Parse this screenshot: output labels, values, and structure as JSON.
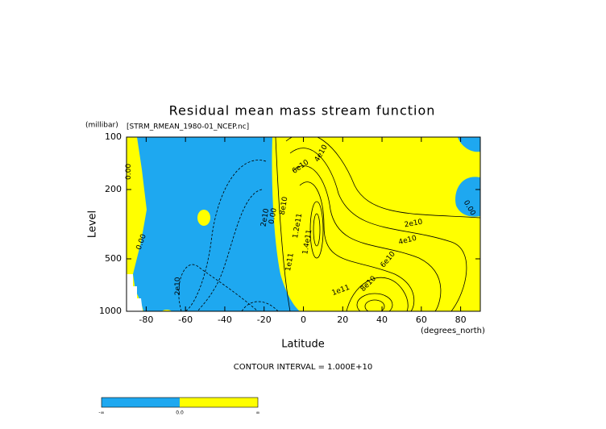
{
  "chart_data": {
    "type": "contour",
    "title": "Residual mean mass stream function",
    "subtitle": "[STRM_RMEAN_1980-01_NCEP.nc]",
    "y_unit": "(millibar)",
    "x_unit": "(degrees_north)",
    "y_label": "Level",
    "x_label": "Latitude",
    "note": "CONTOUR INTERVAL = 1.000E+10",
    "xlim": [
      -90,
      90
    ],
    "xticks": [
      -80,
      -60,
      -40,
      -20,
      0,
      20,
      40,
      60,
      80
    ],
    "ylim": [
      100,
      1000
    ],
    "yticks": [
      100,
      200,
      500,
      1000
    ],
    "y_log": true,
    "negative_color": "#1ea8f0",
    "positive_color": "#ffff00",
    "contour_labels": [
      {
        "text": "0.00",
        "lat": -89,
        "level": 158,
        "rotation": -90
      },
      {
        "text": "0.00",
        "lat": -82.5,
        "level": 400,
        "rotation": -70
      },
      {
        "text": "2e10",
        "lat": -64,
        "level": 718,
        "rotation": -90
      },
      {
        "text": "2e10",
        "lat": -19.5,
        "level": 290,
        "rotation": -80
      },
      {
        "text": "0.00",
        "lat": -15.5,
        "level": 284,
        "rotation": -80
      },
      {
        "text": "8e10",
        "lat": -10,
        "level": 248,
        "rotation": -80
      },
      {
        "text": "1.2e11",
        "lat": -3,
        "level": 323,
        "rotation": -80
      },
      {
        "text": "1.4e11",
        "lat": 2,
        "level": 400,
        "rotation": -80
      },
      {
        "text": "1e11",
        "lat": -7,
        "level": 522,
        "rotation": -80
      },
      {
        "text": "6e10",
        "lat": -1.5,
        "level": 148,
        "rotation": -35
      },
      {
        "text": "4e10",
        "lat": 9,
        "level": 124,
        "rotation": -60
      },
      {
        "text": "2e10",
        "lat": 56,
        "level": 313,
        "rotation": -10
      },
      {
        "text": "4e10",
        "lat": 53,
        "level": 391,
        "rotation": -15
      },
      {
        "text": "6e10",
        "lat": 43,
        "level": 505,
        "rotation": -50
      },
      {
        "text": "8e10",
        "lat": 33,
        "level": 696,
        "rotation": -45
      },
      {
        "text": "1e11",
        "lat": 19,
        "level": 758,
        "rotation": -20
      },
      {
        "text": "0.00",
        "lat": 84.5,
        "level": 255,
        "rotation": 60
      }
    ],
    "colorbar": {
      "labels": [
        "-∞",
        "0.0",
        "∞"
      ]
    }
  }
}
